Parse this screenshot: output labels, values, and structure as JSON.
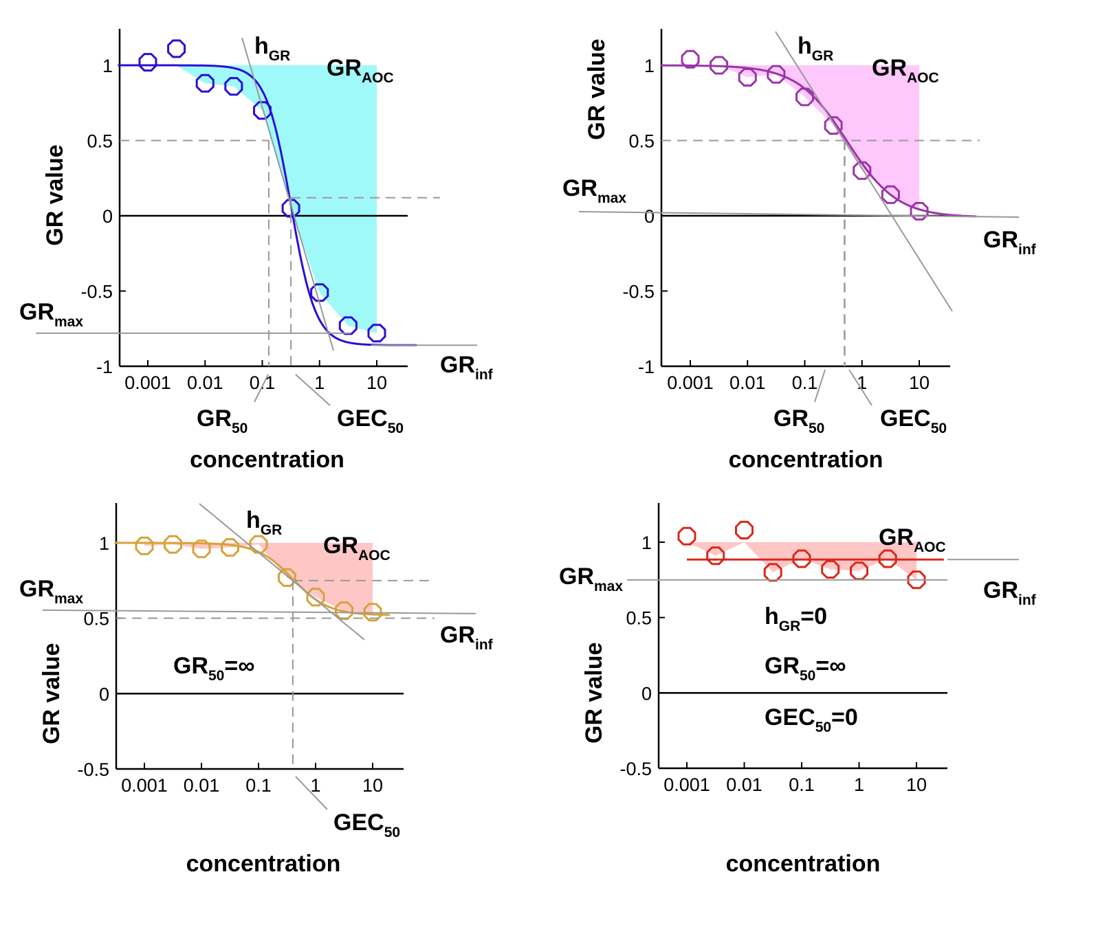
{
  "chart_data": [
    {
      "id": "top-left",
      "type": "scatter",
      "xlabel": "concentration",
      "ylabel": "GR value",
      "x_scale": "log",
      "xlim": [
        0.0003,
        30
      ],
      "ylim": [
        -1,
        1.25
      ],
      "xticks": [
        "0.001",
        "0.01",
        "0.1",
        "1",
        "10"
      ],
      "yticks": [
        "-1",
        "-0.5",
        "0",
        "0.5",
        "1"
      ],
      "color": "#2a0fd6",
      "fill_color": "#9ff9f9",
      "points": [
        {
          "x": 0.001,
          "y": 1.02
        },
        {
          "x": 0.00316,
          "y": 1.11
        },
        {
          "x": 0.01,
          "y": 0.88
        },
        {
          "x": 0.0316,
          "y": 0.86
        },
        {
          "x": 0.1,
          "y": 0.7
        },
        {
          "x": 0.316,
          "y": 0.05
        },
        {
          "x": 1,
          "y": -0.51
        },
        {
          "x": 3.16,
          "y": -0.73
        },
        {
          "x": 10,
          "y": -0.78
        }
      ],
      "fit": {
        "GR_inf": -0.86,
        "GEC50": 0.316,
        "h_GR": 2.0,
        "x_end": 50
      },
      "aoc_to": 10,
      "GR50": 0.13,
      "GR_max": -0.78,
      "GEC50_level": 0.12,
      "labels": {
        "h_main": "h",
        "h_sub": "GR",
        "aoc_main": "GR",
        "aoc_sub": "AOC",
        "max_main": "GR",
        "max_sub": "max",
        "inf_main": "GR",
        "inf_sub": "inf",
        "gr50_main": "GR",
        "gr50_sub": "50",
        "gec50_main": "GEC",
        "gec50_sub": "50"
      }
    },
    {
      "id": "top-right",
      "type": "scatter",
      "xlabel": "concentration",
      "ylabel": "GR value",
      "x_scale": "log",
      "xlim": [
        0.0003,
        30
      ],
      "ylim": [
        -1,
        1.25
      ],
      "xticks": [
        "0.001",
        "0.01",
        "0.1",
        "1",
        "10"
      ],
      "yticks": [
        "-1",
        "-0.5",
        "0",
        "0.5",
        "1"
      ],
      "color": "#9b35a8",
      "fill_color": "#ffc8fc",
      "points": [
        {
          "x": 0.001,
          "y": 1.04
        },
        {
          "x": 0.00316,
          "y": 1.0
        },
        {
          "x": 0.01,
          "y": 0.92
        },
        {
          "x": 0.0316,
          "y": 0.94
        },
        {
          "x": 0.1,
          "y": 0.79
        },
        {
          "x": 0.316,
          "y": 0.6
        },
        {
          "x": 1,
          "y": 0.3
        },
        {
          "x": 3.16,
          "y": 0.14
        },
        {
          "x": 10,
          "y": 0.03
        }
      ],
      "fit": {
        "GR_inf": -0.01,
        "GEC50": 0.55,
        "h_GR": 1.0,
        "x_end": 100
      },
      "aoc_to": 10,
      "GR50": 0.5,
      "GR_max": 0.03,
      "labels": {
        "h_main": "h",
        "h_sub": "GR",
        "aoc_main": "GR",
        "aoc_sub": "AOC",
        "max_main": "GR",
        "max_sub": "max",
        "inf_main": "GR",
        "inf_sub": "inf",
        "gr50_main": "GR",
        "gr50_sub": "50",
        "gec50_main": "GEC",
        "gec50_sub": "50"
      }
    },
    {
      "id": "bottom-left",
      "type": "scatter",
      "xlabel": "concentration",
      "ylabel": "GR value",
      "x_scale": "log",
      "xlim": [
        0.0003,
        30
      ],
      "ylim": [
        -0.5,
        1.25
      ],
      "xticks": [
        "0.001",
        "0.01",
        "0.1",
        "1",
        "10"
      ],
      "yticks": [
        "-0.5",
        "0",
        "0.5",
        "1"
      ],
      "color": "#d7a23a",
      "fill_color": "#ffc6c6",
      "points": [
        {
          "x": 0.001,
          "y": 0.98
        },
        {
          "x": 0.00316,
          "y": 0.99
        },
        {
          "x": 0.01,
          "y": 0.96
        },
        {
          "x": 0.0316,
          "y": 0.97
        },
        {
          "x": 0.1,
          "y": 0.99
        },
        {
          "x": 0.316,
          "y": 0.77
        },
        {
          "x": 1,
          "y": 0.64
        },
        {
          "x": 3.16,
          "y": 0.55
        },
        {
          "x": 10,
          "y": 0.54
        }
      ],
      "fit": {
        "GR_inf": 0.52,
        "GEC50": 0.4,
        "h_GR": 1.4,
        "x_end": 20
      },
      "aoc_to": 10,
      "GR_max": 0.54,
      "GEC50_level": 0.75,
      "labels": {
        "h_main": "h",
        "h_sub": "GR",
        "aoc_main": "GR",
        "aoc_sub": "AOC",
        "max_main": "GR",
        "max_sub": "max",
        "inf_main": "GR",
        "inf_sub": "inf",
        "gec50_main": "GEC",
        "gec50_sub": "50",
        "gr50_note_main": "GR",
        "gr50_note_sub": "50",
        "gr50_note_tail": "=∞"
      }
    },
    {
      "id": "bottom-right",
      "type": "scatter",
      "xlabel": "concentration",
      "ylabel": "GR value",
      "x_scale": "log",
      "xlim": [
        0.0003,
        30
      ],
      "ylim": [
        -0.5,
        1.25
      ],
      "xticks": [
        "0.001",
        "0.01",
        "0.1",
        "1",
        "10"
      ],
      "yticks": [
        "-0.5",
        "0",
        "0.5",
        "1"
      ],
      "color": "#d8281b",
      "fill_color": "#ffc6c6",
      "points": [
        {
          "x": 0.001,
          "y": 1.04
        },
        {
          "x": 0.00316,
          "y": 0.91
        },
        {
          "x": 0.01,
          "y": 1.08
        },
        {
          "x": 0.0316,
          "y": 0.8
        },
        {
          "x": 0.1,
          "y": 0.89
        },
        {
          "x": 0.316,
          "y": 0.82
        },
        {
          "x": 1,
          "y": 0.81
        },
        {
          "x": 3.16,
          "y": 0.89
        },
        {
          "x": 10,
          "y": 0.75
        }
      ],
      "fit": {
        "flat": 0.885,
        "x_start": 0.001,
        "x_end": 30
      },
      "aoc_to": 10,
      "GR_max": 0.75,
      "labels": {
        "aoc_main": "GR",
        "aoc_sub": "AOC",
        "max_main": "GR",
        "max_sub": "max",
        "inf_main": "GR",
        "inf_sub": "inf",
        "h_note_main": "h",
        "h_note_sub": "GR",
        "h_note_tail": "=0",
        "gr50_note_main": "GR",
        "gr50_note_sub": "50",
        "gr50_note_tail": "=∞",
        "gec50_note_main": "GEC",
        "gec50_note_sub": "50",
        "gec50_note_tail": "=0"
      }
    }
  ]
}
